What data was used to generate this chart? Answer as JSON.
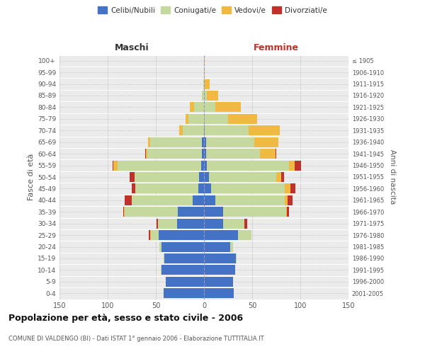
{
  "age_groups": [
    "0-4",
    "5-9",
    "10-14",
    "15-19",
    "20-24",
    "25-29",
    "30-34",
    "35-39",
    "40-44",
    "45-49",
    "50-54",
    "55-59",
    "60-64",
    "65-69",
    "70-74",
    "75-79",
    "80-84",
    "85-89",
    "90-94",
    "95-99",
    "100+"
  ],
  "birth_years": [
    "2001-2005",
    "1996-2000",
    "1991-1995",
    "1986-1990",
    "1981-1985",
    "1976-1980",
    "1971-1975",
    "1966-1970",
    "1961-1965",
    "1956-1960",
    "1951-1955",
    "1946-1950",
    "1941-1945",
    "1936-1940",
    "1931-1935",
    "1926-1930",
    "1921-1925",
    "1916-1920",
    "1911-1915",
    "1906-1910",
    "≤ 1905"
  ],
  "maschi": {
    "celibi": [
      42,
      40,
      44,
      41,
      44,
      47,
      28,
      27,
      12,
      6,
      5,
      3,
      2,
      2,
      0,
      0,
      0,
      0,
      0,
      0,
      0
    ],
    "coniugati": [
      0,
      0,
      1,
      1,
      2,
      8,
      20,
      55,
      63,
      65,
      67,
      87,
      57,
      54,
      22,
      16,
      10,
      2,
      1,
      0,
      0
    ],
    "vedovi": [
      0,
      0,
      0,
      0,
      0,
      1,
      0,
      1,
      0,
      0,
      0,
      4,
      1,
      2,
      4,
      3,
      5,
      0,
      0,
      0,
      0
    ],
    "divorziati": [
      0,
      0,
      0,
      0,
      0,
      1,
      1,
      1,
      7,
      4,
      5,
      1,
      1,
      0,
      0,
      0,
      0,
      0,
      0,
      0,
      0
    ]
  },
  "femmine": {
    "nubili": [
      31,
      30,
      32,
      33,
      27,
      35,
      20,
      20,
      12,
      7,
      5,
      3,
      2,
      2,
      1,
      0,
      0,
      0,
      0,
      0,
      0
    ],
    "coniugate": [
      0,
      0,
      0,
      1,
      3,
      14,
      22,
      65,
      72,
      77,
      70,
      85,
      56,
      50,
      45,
      25,
      12,
      3,
      1,
      0,
      0
    ],
    "vedove": [
      0,
      0,
      0,
      0,
      0,
      0,
      0,
      1,
      3,
      6,
      5,
      6,
      16,
      25,
      33,
      30,
      26,
      12,
      5,
      1,
      1
    ],
    "divorziate": [
      0,
      0,
      0,
      0,
      0,
      0,
      3,
      2,
      5,
      5,
      3,
      7,
      1,
      0,
      0,
      0,
      0,
      0,
      0,
      0,
      0
    ]
  },
  "colors": {
    "celibi": "#4472c4",
    "coniugati": "#c5d89e",
    "vedovi": "#f0b941",
    "divorziati": "#c0312b"
  },
  "xlim": 150,
  "title": "Popolazione per età, sesso e stato civile - 2006",
  "subtitle": "COMUNE DI VALDENGO (BI) - Dati ISTAT 1° gennaio 2006 - Elaborazione TUTTITALIA.IT",
  "ylabel_left": "Fasce di età",
  "ylabel_right": "Anni di nascita",
  "xlabel_left": "Maschi",
  "xlabel_right": "Femmine",
  "legend_labels": [
    "Celibi/Nubili",
    "Coniugati/e",
    "Vedovi/e",
    "Divorziati/e"
  ],
  "bg_color": "#f0f0f0",
  "plot_bg": "#ebebeb"
}
